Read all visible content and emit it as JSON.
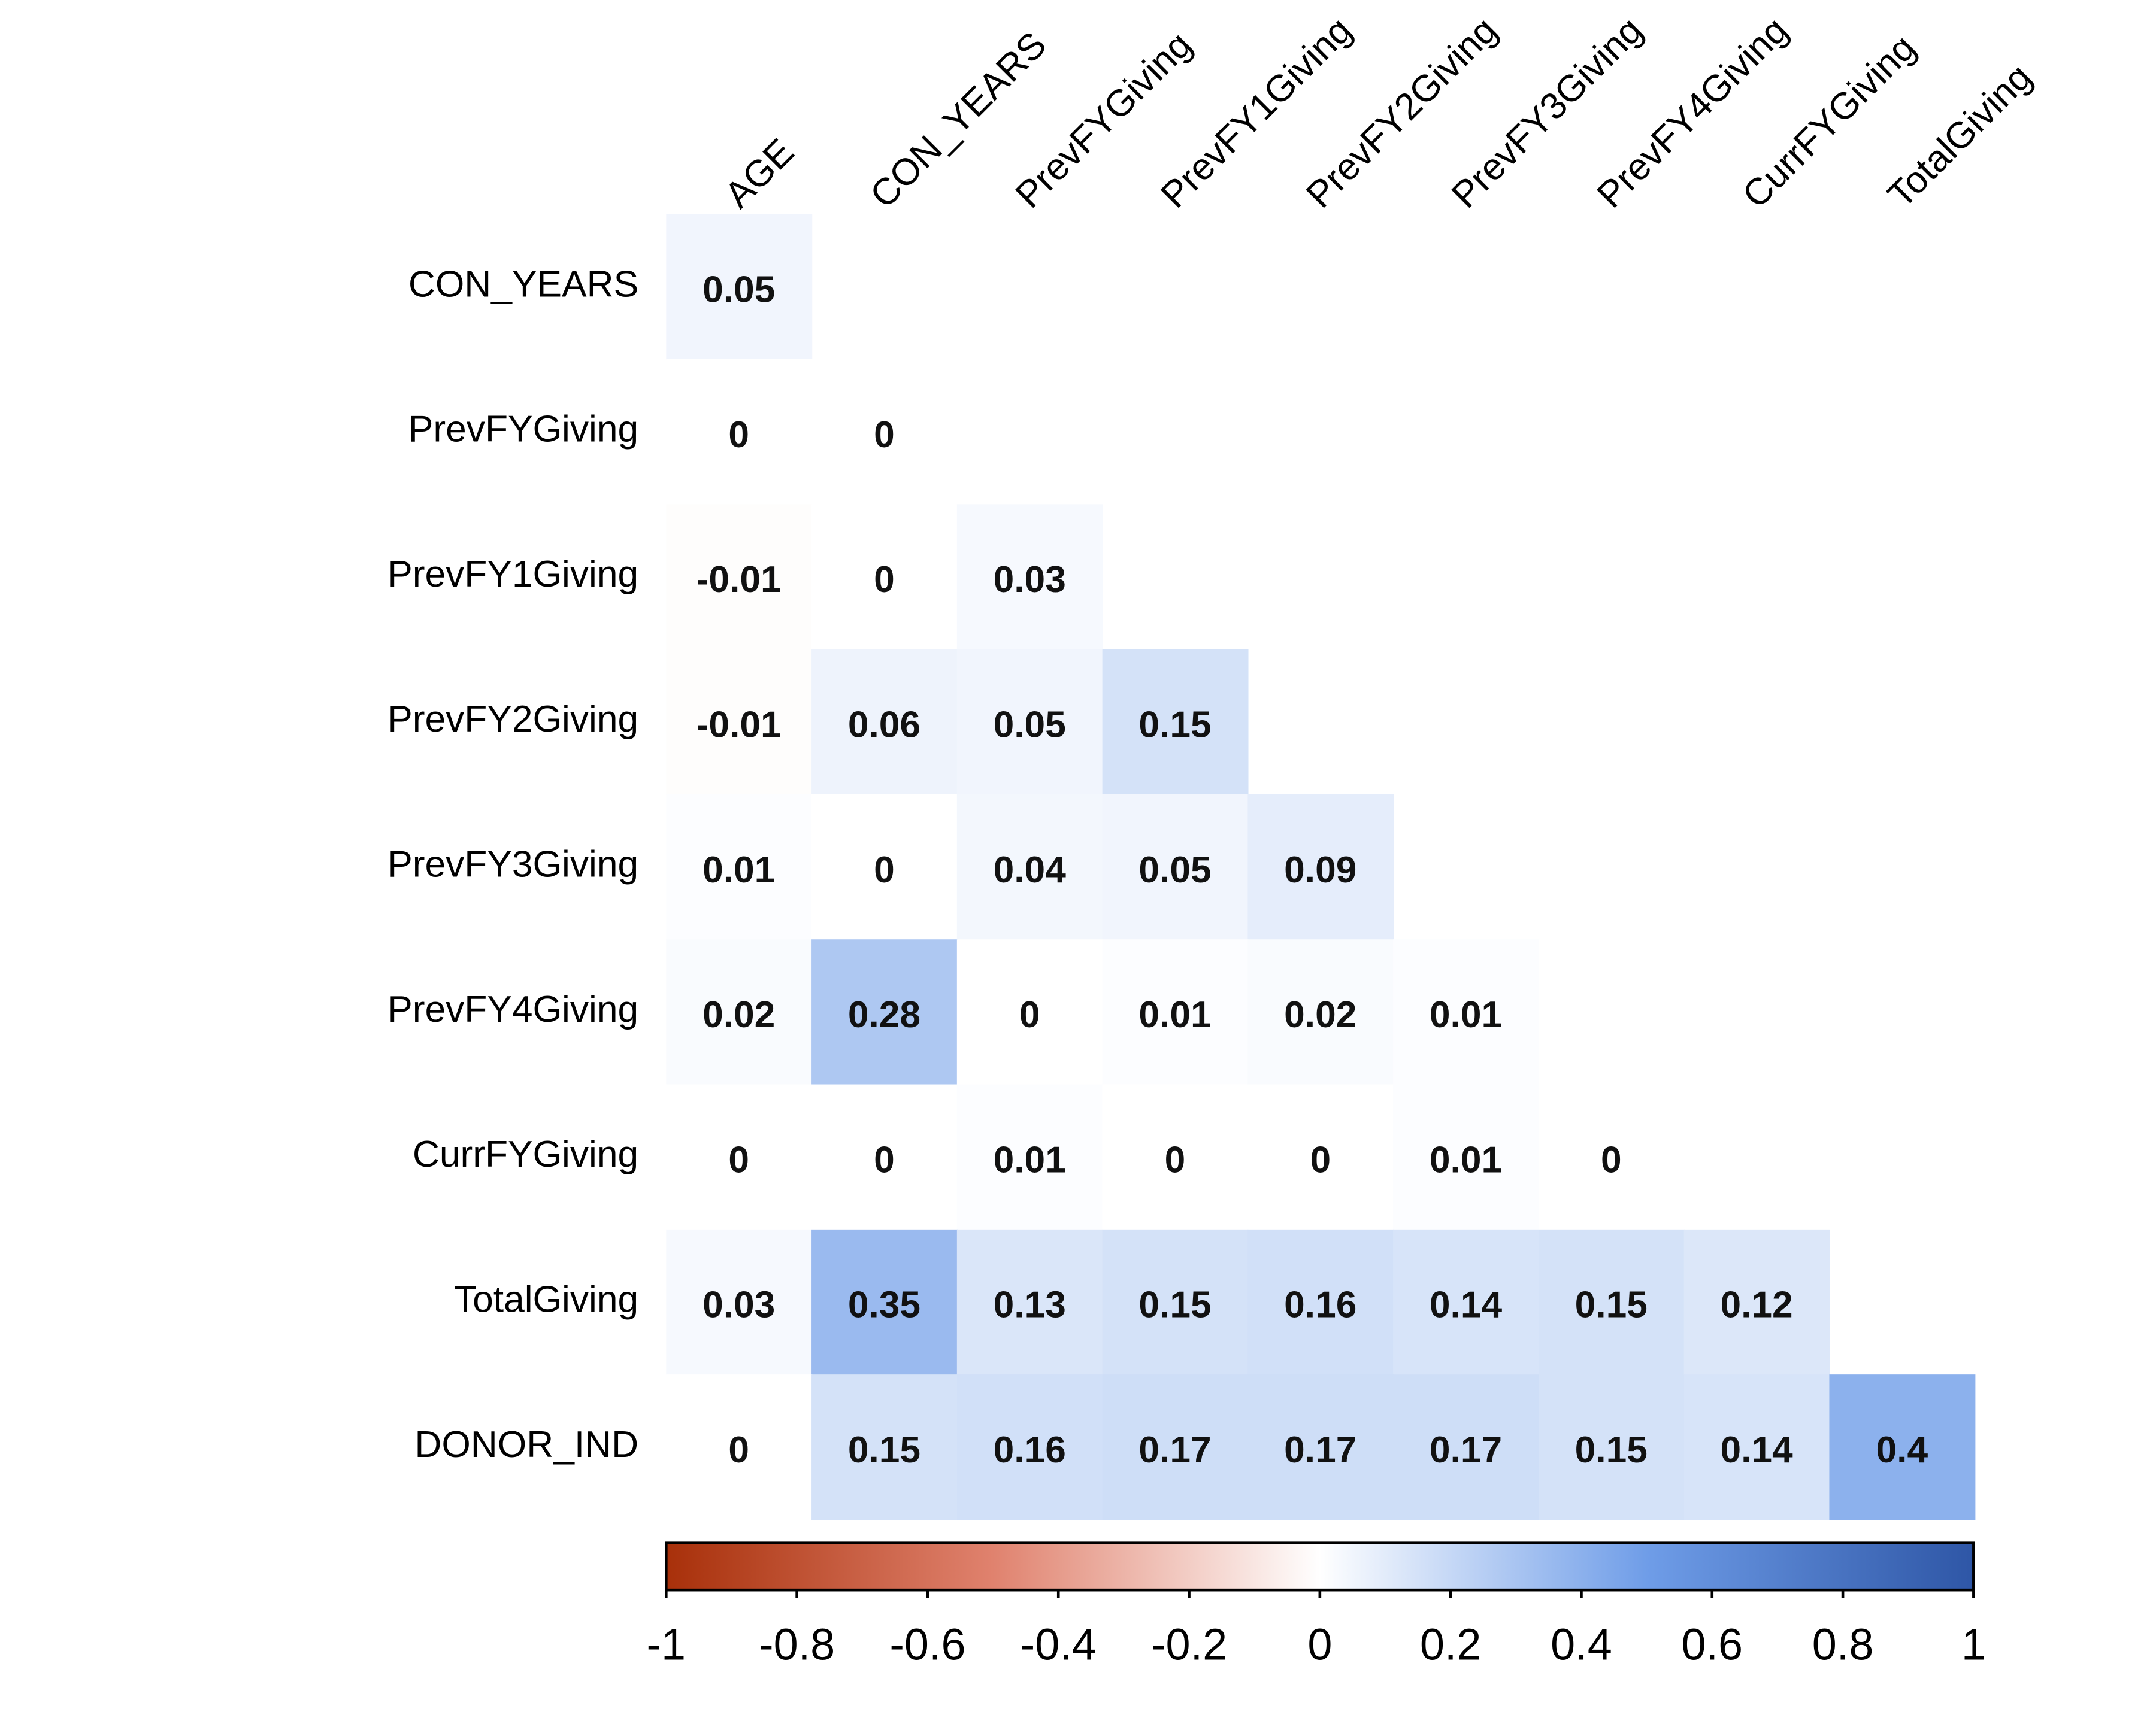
{
  "chart_data": {
    "type": "heatmap",
    "row_labels": [
      "CON_YEARS",
      "PrevFYGiving",
      "PrevFY1Giving",
      "PrevFY2Giving",
      "PrevFY3Giving",
      "PrevFY4Giving",
      "CurrFYGiving",
      "TotalGiving",
      "DONOR_IND"
    ],
    "column_labels": [
      "AGE",
      "CON_YEARS",
      "PrevFYGiving",
      "PrevFY1Giving",
      "PrevFY2Giving",
      "PrevFY3Giving",
      "PrevFY4Giving",
      "CurrFYGiving",
      "TotalGiving"
    ],
    "values": [
      [
        0.05
      ],
      [
        0,
        0
      ],
      [
        -0.01,
        0,
        0.03
      ],
      [
        -0.01,
        0.06,
        0.05,
        0.15
      ],
      [
        0.01,
        0,
        0.04,
        0.05,
        0.09
      ],
      [
        0.02,
        0.28,
        0,
        0.01,
        0.02,
        0.01
      ],
      [
        0,
        0,
        0.01,
        0,
        0,
        0.01,
        0
      ],
      [
        0.03,
        0.35,
        0.13,
        0.15,
        0.16,
        0.14,
        0.15,
        0.12
      ],
      [
        0,
        0.15,
        0.16,
        0.17,
        0.17,
        0.17,
        0.15,
        0.14,
        0.4
      ]
    ],
    "colorscale": [
      "#a8300a",
      "#e0826e",
      "#ffffff",
      "#6f9de8",
      "#2e56a6"
    ],
    "clim": [
      -1,
      1
    ],
    "colorbar_ticks": [
      -1,
      -0.8,
      -0.6,
      -0.4,
      -0.2,
      0,
      0.2,
      0.4,
      0.6,
      0.8,
      1
    ]
  }
}
